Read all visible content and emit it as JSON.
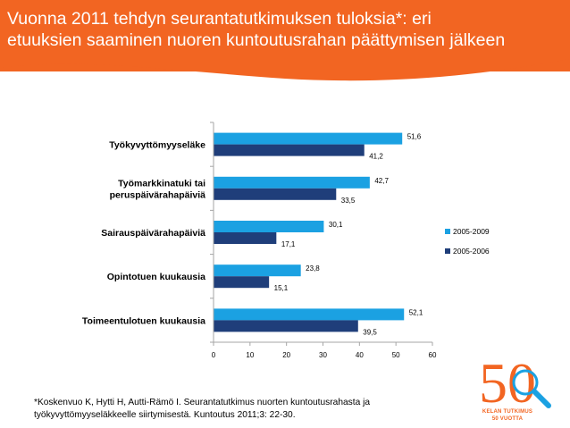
{
  "slide": {
    "title_line1": "Vuonna 2011 tehdyn seurantatutkimuksen tuloksia*: eri",
    "title_line2": "etuuksien saaminen nuoren kuntoutusrahan päättymisen jälkeen",
    "footnote_line1": "*Koskenvuo K, Hytti H, Autti-Rämö I. Seurantatutkimus nuorten kuntoutusrahasta ja",
    "footnote_line2": "työkyvyttömyyseläkkeelle siirtymisestä. Kuntoutus 2011;3: 22-30.",
    "logo_number": "50",
    "logo_line1": "KELAN TUTKIMUS",
    "logo_line2": "50 VUOTTA"
  },
  "chart_data": {
    "type": "bar",
    "orientation": "horizontal",
    "categories": [
      [
        "Työkyvyttömyyseläke"
      ],
      [
        "Työmarkkinatuki tai",
        "peruspäivärahapäiviä"
      ],
      [
        "Sairauspäivärahapäiviä"
      ],
      [
        "Opintotuen kuukausia"
      ],
      [
        "Toimeentulotuen kuukausia"
      ]
    ],
    "series": [
      {
        "name": "2005-2009",
        "color": "#1ba1e2",
        "values": [
          51.6,
          42.7,
          30.1,
          23.8,
          52.1
        ],
        "labels": [
          "51,6",
          "42,7",
          "30,1",
          "23,8",
          "52,1"
        ]
      },
      {
        "name": "2005-2006",
        "color": "#1f3e7a",
        "values": [
          41.2,
          33.5,
          17.1,
          15.1,
          39.5
        ],
        "labels": [
          "41,2",
          "33,5",
          "17,1",
          "15,1",
          "39,5"
        ]
      }
    ],
    "xlim": [
      0,
      60
    ],
    "xticks": [
      0,
      10,
      20,
      30,
      40,
      50,
      60
    ],
    "grid": false,
    "legend_position": "right"
  }
}
